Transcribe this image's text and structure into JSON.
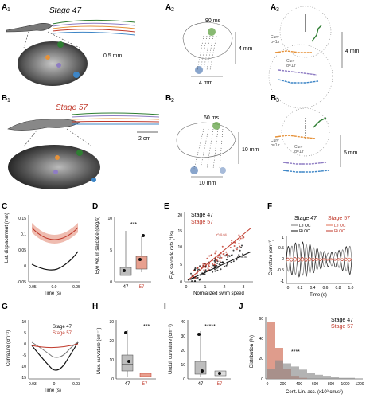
{
  "panels": {
    "A1": {
      "label": "A",
      "sub": "1",
      "title": "Stage 47",
      "scale": "0.5 mm"
    },
    "A2": {
      "label": "A",
      "sub": "2",
      "time": "90 ms",
      "h": "4 mm",
      "w": "4 mm"
    },
    "A3": {
      "label": "A",
      "sub": "3",
      "h": "4 mm",
      "curve1": "Curv",
      "curve1b": "α=1/r",
      "curve2": "Curv",
      "curve2b": "α=1/r"
    },
    "B1": {
      "label": "B",
      "sub": "1",
      "title": "Stage 57",
      "scale": "2 cm"
    },
    "B2": {
      "label": "B",
      "sub": "2",
      "time": "60 ms",
      "h": "10 mm",
      "w": "10 mm"
    },
    "B3": {
      "label": "B",
      "sub": "3",
      "h": "5 mm",
      "curve1": "Curv",
      "curve1b": "α=1/r",
      "curve2": "Curv",
      "curve2b": "α=1/r"
    },
    "C": {
      "label": "C",
      "ylabel": "Lat. displacement (mm)",
      "xlabel": "Time (s)",
      "yticks": [
        "0.15",
        "0.1",
        "0.05",
        "0",
        "-0.05"
      ],
      "xticks": [
        "-0.05",
        "0.0",
        "0.05"
      ]
    },
    "D": {
      "label": "D",
      "ylabel": "Eye vel. in saccade (deg/s)",
      "yticks": [
        "10",
        "5",
        "0"
      ],
      "xticks": [
        "47",
        "57"
      ],
      "sig": "***"
    },
    "E": {
      "label": "E",
      "ylabel": "Eye saccade rate (1/s)",
      "xlabel": "Normalized swim speed",
      "legend": [
        "Stage 47",
        "Stage 57"
      ],
      "xticks": [
        "0",
        "1",
        "2",
        "3"
      ],
      "yticks": [
        "0",
        "5",
        "10",
        "15",
        "20"
      ],
      "ann1": "r²=0.64",
      "ann2": "r²=0.39"
    },
    "F": {
      "label": "F",
      "ylabel": "Curvature (cm⁻¹)",
      "xlabel": "Time (s)",
      "h47": "Stage 47",
      "h57": "Stage 57",
      "leg47": [
        "Le OC",
        "Ri OC"
      ],
      "leg57": [
        "Le OC",
        "Ri OC"
      ],
      "xticks": [
        "0",
        "0.2",
        "0.4",
        "0.6",
        "0.8",
        "1.0"
      ],
      "yticks": [
        "1",
        "0.5",
        "0",
        "-0.5",
        "-1"
      ]
    },
    "G": {
      "label": "G",
      "ylabel": "Curvature (cm⁻¹)",
      "xlabel": "Time (s)",
      "legend": [
        "Stage 47",
        "Stage 57"
      ],
      "xticks": [
        "-0.03",
        "0",
        "0.03"
      ],
      "yticks": [
        "10",
        "5",
        "0",
        "-5",
        "-10",
        "-15"
      ]
    },
    "H": {
      "label": "H",
      "ylabel": "Max. curvature (cm⁻¹)",
      "xticks": [
        "47",
        "57"
      ],
      "yticks": [
        "30",
        "20",
        "10",
        "0"
      ],
      "sig": "***"
    },
    "I": {
      "label": "I",
      "ylabel": "Undul. curvature (cm⁻¹)",
      "xticks": [
        "47",
        "57"
      ],
      "yticks": [
        "40",
        "30",
        "20",
        "10",
        "0"
      ],
      "sig": "*****"
    },
    "J": {
      "label": "J",
      "ylabel": "Distribution (%)",
      "xlabel": "Cent. Lin. acc. (x10³ cm/s²)",
      "legend": [
        "Stage 47",
        "Stage 57"
      ],
      "yticks": [
        "60",
        "40",
        "20",
        "0"
      ],
      "xticks": [
        "0",
        "200",
        "400",
        "600",
        "800",
        "1000",
        "1200"
      ],
      "sig": "****"
    }
  },
  "colors": {
    "stage47": "#222222",
    "stage57": "#c0392b",
    "shade57": "#e8a08f",
    "gray": "#9a9a9a"
  },
  "chart_data": [
    {
      "type": "line",
      "panel": "C",
      "x": [
        -0.07,
        -0.05,
        -0.03,
        -0.01,
        0.01,
        0.03,
        0.05,
        0.07
      ],
      "series": [
        {
          "name": "Stage 57",
          "values": [
            0.14,
            0.12,
            0.1,
            0.085,
            0.085,
            0.1,
            0.12,
            0.14
          ]
        },
        {
          "name": "Stage 47",
          "values": [
            0.03,
            0.015,
            0.005,
            0.0,
            0.005,
            0.015,
            0.04,
            0.07
          ]
        }
      ],
      "ylim": [
        -0.05,
        0.15
      ]
    },
    {
      "type": "scatter",
      "panel": "D",
      "categories": [
        "47",
        "57"
      ],
      "medians": [
        1,
        2
      ],
      "ylim": [
        0,
        10
      ]
    },
    {
      "type": "scatter",
      "panel": "E",
      "series": [
        {
          "name": "Stage 47",
          "slope": 5.5,
          "intercept": -2
        },
        {
          "name": "Stage 57",
          "slope": 8,
          "intercept": -4
        }
      ],
      "xlim": [
        0,
        3.5
      ],
      "ylim": [
        0,
        20
      ]
    },
    {
      "type": "line",
      "panel": "F",
      "xlim": [
        0,
        1
      ],
      "ylim": [
        -1,
        1
      ]
    },
    {
      "type": "line",
      "panel": "G",
      "x": [
        -0.04,
        -0.03,
        -0.02,
        -0.01,
        0,
        0.01,
        0.02,
        0.03,
        0.04
      ],
      "series": [
        {
          "name": "Stage 47",
          "values": [
            0,
            -2,
            -6,
            -10,
            -12,
            -10,
            -5,
            -2,
            0
          ]
        },
        {
          "name": "Stage 57",
          "values": [
            0,
            -0.5,
            -1,
            -1.5,
            -2,
            -1.5,
            -1,
            -0.5,
            0
          ]
        }
      ],
      "ylim": [
        -15,
        10
      ]
    },
    {
      "type": "bar",
      "panel": "J",
      "categories": [
        "0",
        "100",
        "200",
        "300",
        "400",
        "500",
        "600",
        "700",
        "800",
        "900",
        "1000"
      ],
      "series": [
        {
          "name": "Stage 57",
          "values": [
            55,
            30,
            10,
            3,
            1,
            0,
            0,
            0,
            0,
            0,
            0
          ]
        },
        {
          "name": "Stage 47",
          "values": [
            10,
            18,
            15,
            12,
            9,
            6,
            4,
            3,
            2,
            1,
            1
          ]
        }
      ],
      "ylim": [
        0,
        60
      ]
    }
  ]
}
